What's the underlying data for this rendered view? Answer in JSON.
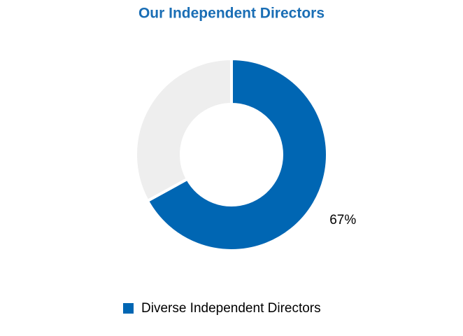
{
  "chart_data": {
    "type": "donut",
    "title": "Our Independent Directors",
    "categories": [
      "Diverse Independent Directors",
      null
    ],
    "values": [
      67,
      33
    ],
    "value_labels": [
      "67%",
      null
    ],
    "colors": [
      "#0066b3",
      "#eeeeee"
    ]
  }
}
